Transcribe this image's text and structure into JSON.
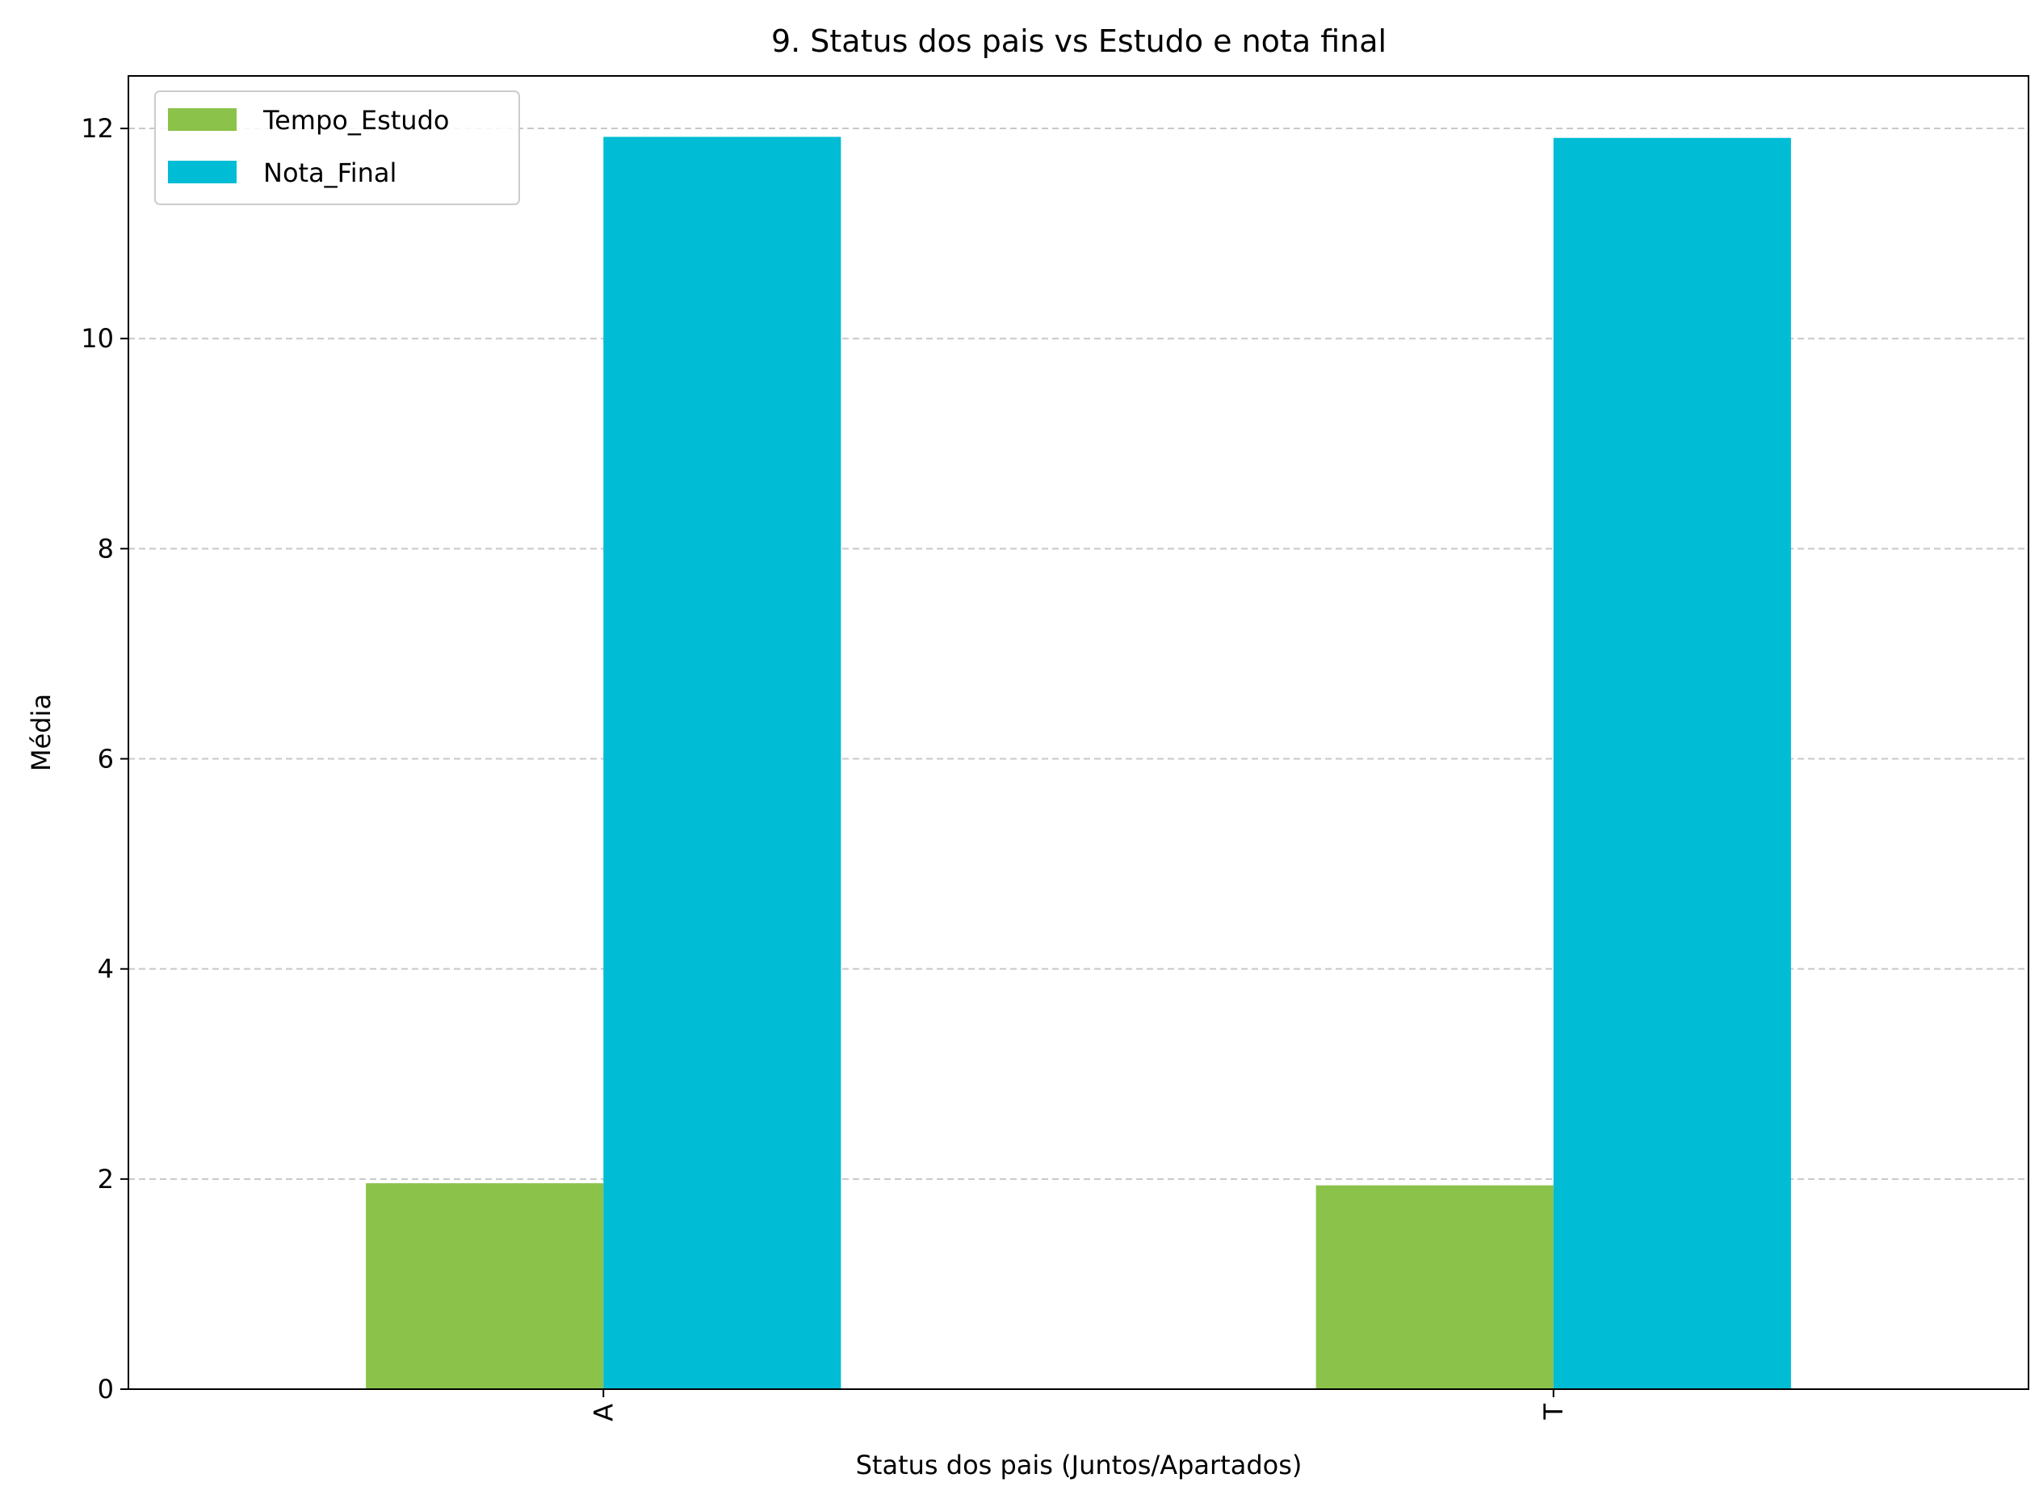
{
  "chart_data": {
    "type": "bar",
    "title": "9. Status dos pais vs Estudo e nota final",
    "xlabel": "Status dos pais (Juntos/Apartados)",
    "ylabel": "Média",
    "categories": [
      "A",
      "T"
    ],
    "series": [
      {
        "name": "Tempo_Estudo",
        "color": "#8bc24a",
        "values": [
          1.96,
          1.94
        ]
      },
      {
        "name": "Nota_Final",
        "color": "#00bcd4",
        "values": [
          11.92,
          11.91
        ]
      }
    ],
    "ylim": [
      0,
      12.5
    ],
    "yticks": [
      0,
      2,
      4,
      6,
      8,
      10,
      12
    ],
    "grid": "y-dashed",
    "legend_position": "top-left"
  }
}
